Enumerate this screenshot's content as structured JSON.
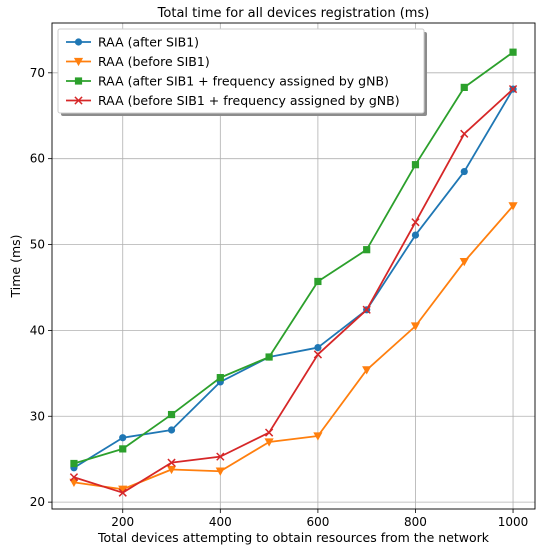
{
  "chart_data": {
    "type": "line",
    "title": "Total time for all devices registration (ms)",
    "xlabel": "Total devices attempting to obtain resources from the network",
    "ylabel": "Time (ms)",
    "x": [
      100,
      200,
      300,
      400,
      500,
      600,
      700,
      800,
      900,
      1000
    ],
    "xlim": [
      55,
      1045
    ],
    "ylim": [
      19.2,
      75.8
    ],
    "xticks": [
      200,
      400,
      600,
      800,
      1000
    ],
    "yticks": [
      20,
      30,
      40,
      50,
      60,
      70
    ],
    "grid": true,
    "legend_position": "top-left",
    "series": [
      {
        "name": "RAA (after SIB1)",
        "color": "#1f77b4",
        "marker": "circle",
        "values": [
          24.0,
          27.5,
          28.4,
          34.0,
          36.9,
          38.0,
          42.4,
          51.1,
          58.5,
          68.1
        ]
      },
      {
        "name": "RAA (before SIB1)",
        "color": "#ff7f0e",
        "marker": "triangle-down",
        "values": [
          22.3,
          21.5,
          23.8,
          23.6,
          27.0,
          27.7,
          35.4,
          40.5,
          48.0,
          54.5
        ]
      },
      {
        "name": "RAA (after SIB1 + frequency assigned by gNB)",
        "color": "#2ca02c",
        "marker": "square",
        "values": [
          24.5,
          26.2,
          30.2,
          34.5,
          36.9,
          45.7,
          49.4,
          59.3,
          68.3,
          72.4
        ]
      },
      {
        "name": "RAA (before SIB1 + frequency assigned by gNB)",
        "color": "#d62728",
        "marker": "x",
        "values": [
          22.9,
          21.1,
          24.6,
          25.3,
          28.1,
          37.2,
          42.4,
          52.6,
          62.9,
          68.1
        ]
      }
    ]
  }
}
